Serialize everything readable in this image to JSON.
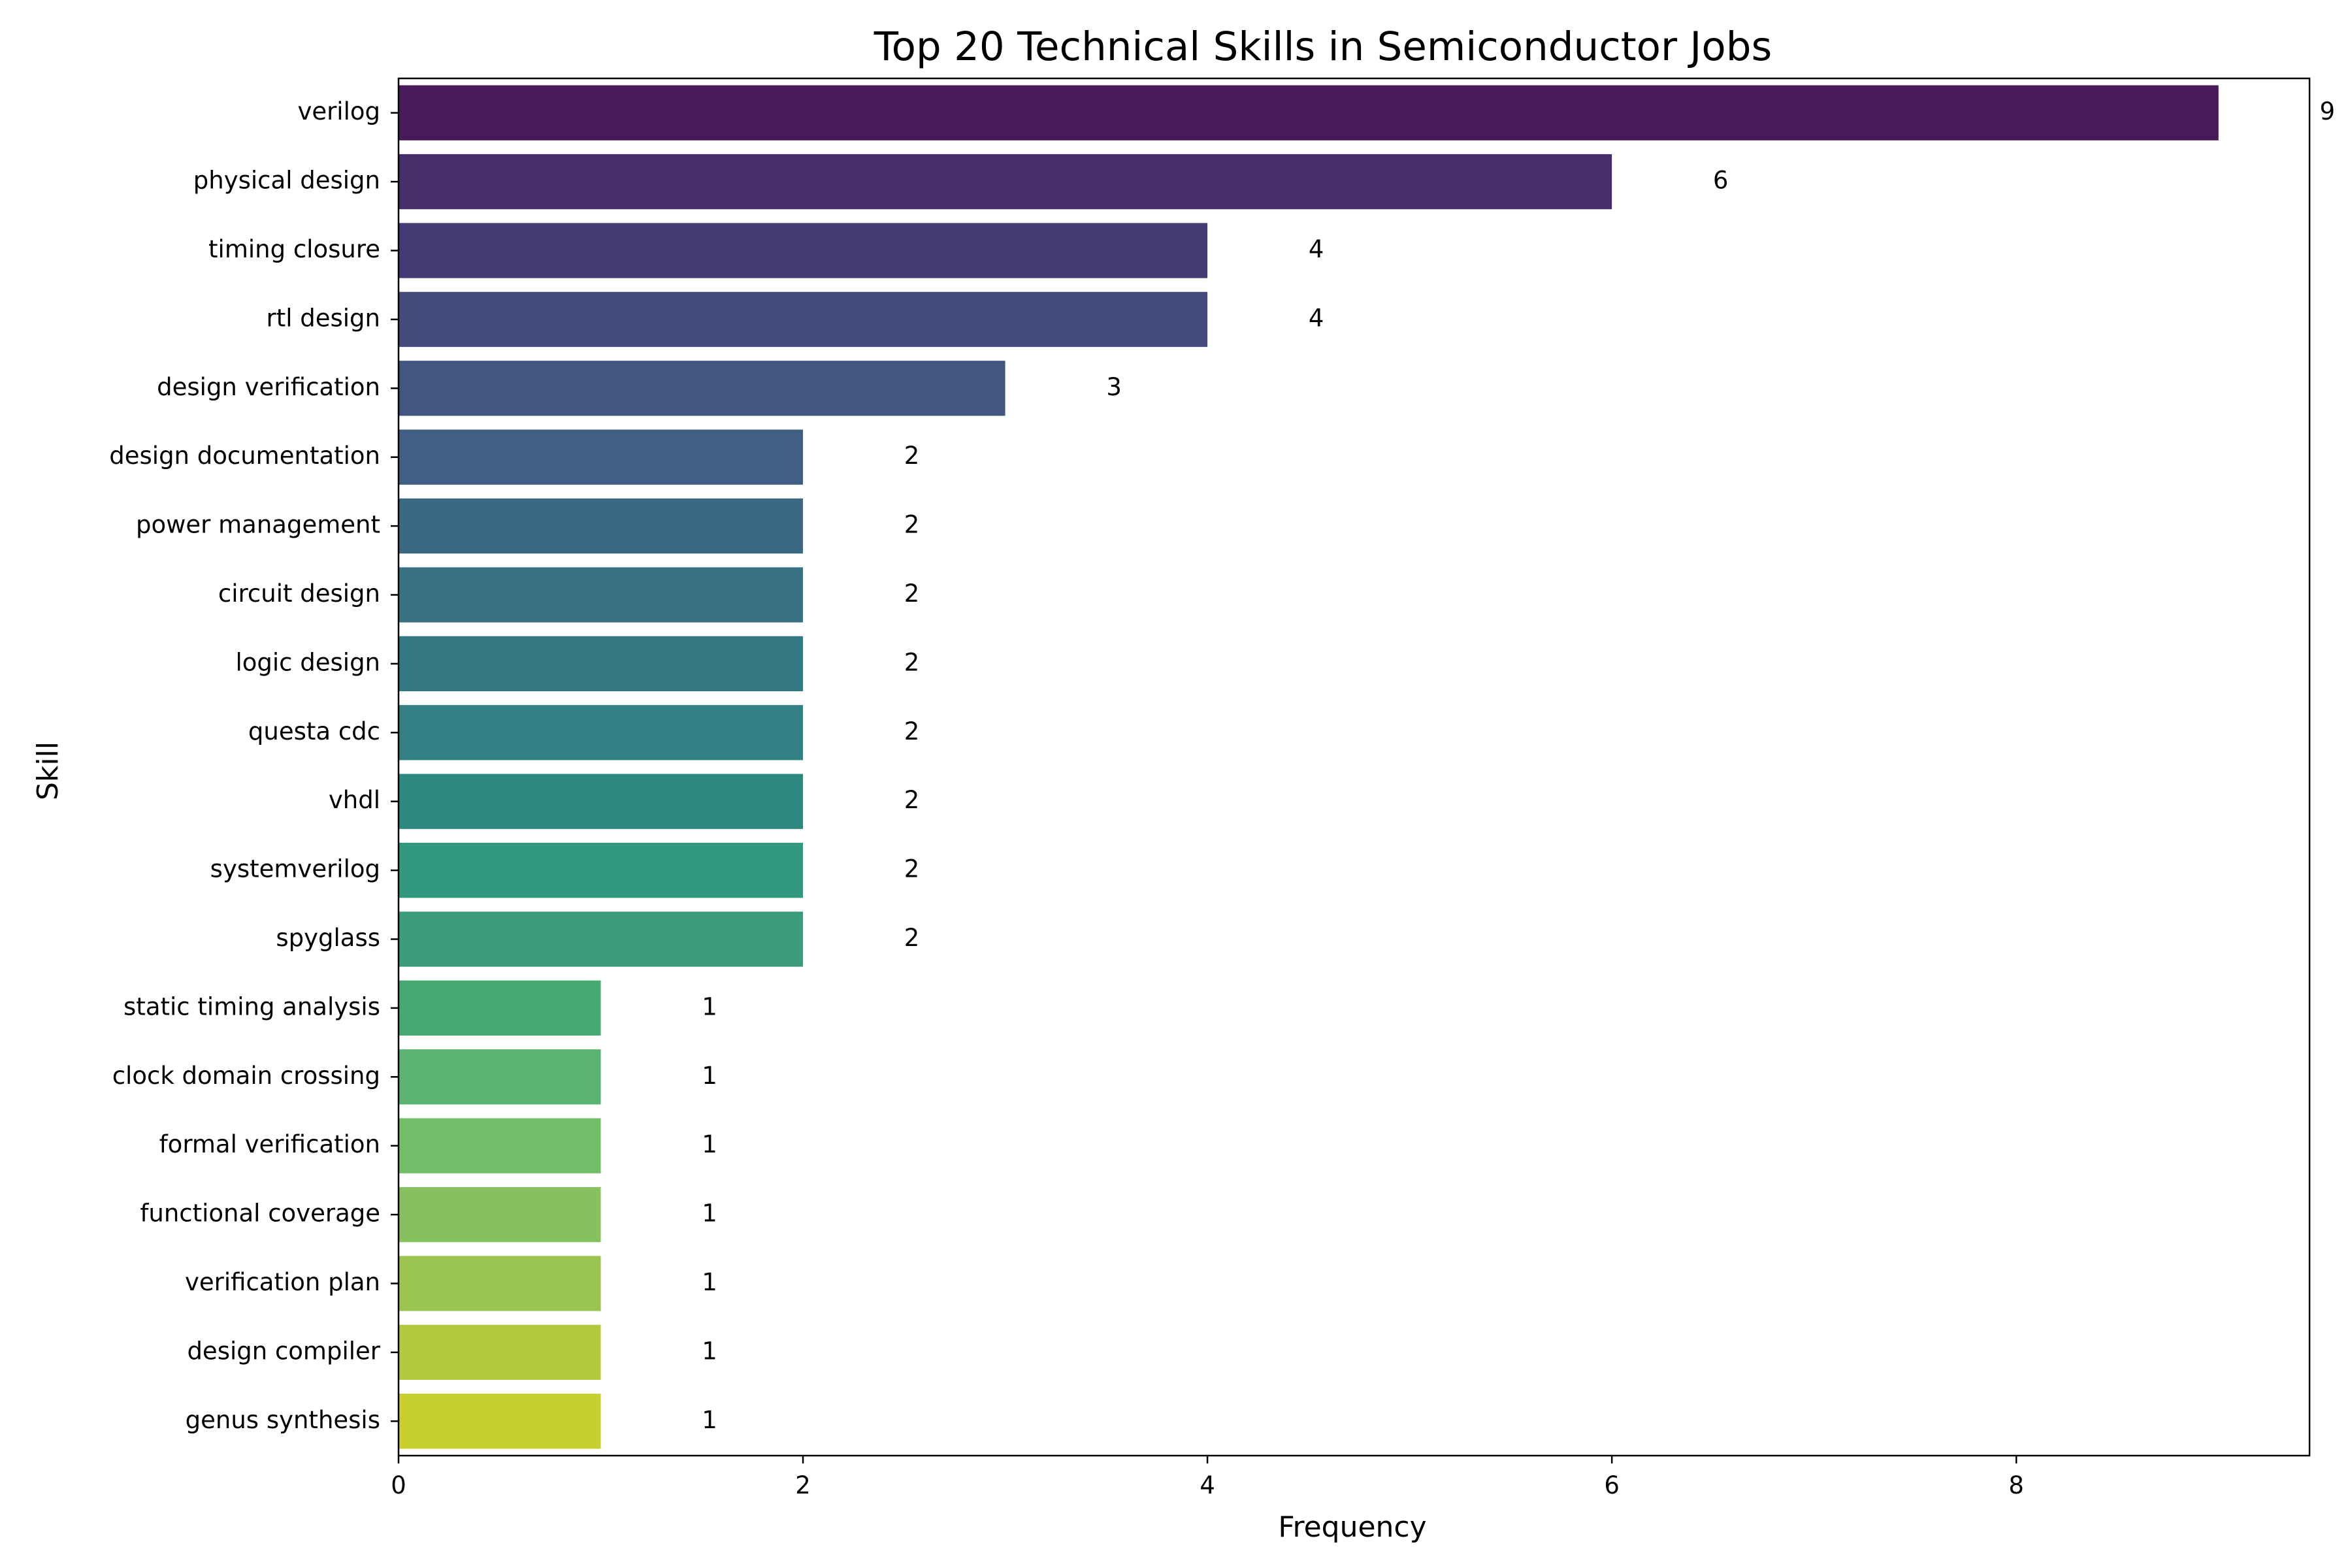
{
  "chart_data": {
    "type": "bar",
    "orientation": "horizontal",
    "title": "Top 20 Technical Skills in Semiconductor Jobs",
    "xlabel": "Frequency",
    "ylabel": "Skill",
    "xlim": [
      0,
      9.45
    ],
    "xticks": [
      0,
      2,
      4,
      6,
      8
    ],
    "categories": [
      "verilog",
      "physical design",
      "timing closure",
      "rtl design",
      "design verification",
      "design documentation",
      "power management",
      "circuit design",
      "logic design",
      "questa cdc",
      "vhdl",
      "systemverilog",
      "spyglass",
      "static timing analysis",
      "clock domain crossing",
      "formal verification",
      "functional coverage",
      "verification plan",
      "design compiler",
      "genus synthesis"
    ],
    "values": [
      9,
      6,
      4,
      4,
      3,
      2,
      2,
      2,
      2,
      2,
      2,
      2,
      2,
      1,
      1,
      1,
      1,
      1,
      1,
      1
    ],
    "colors": [
      "#481a5a",
      "#482e6b",
      "#453a74",
      "#454b7d",
      "#425680",
      "#3f5f85",
      "#3b6883",
      "#387084",
      "#337883",
      "#318083",
      "#2e8a81",
      "#329880",
      "#3b9b7c",
      "#45a871",
      "#59b371",
      "#72bd68",
      "#85c15c",
      "#99c44f",
      "#b1c93c",
      "#c7cf2e"
    ],
    "grid": false,
    "legend": "none"
  }
}
